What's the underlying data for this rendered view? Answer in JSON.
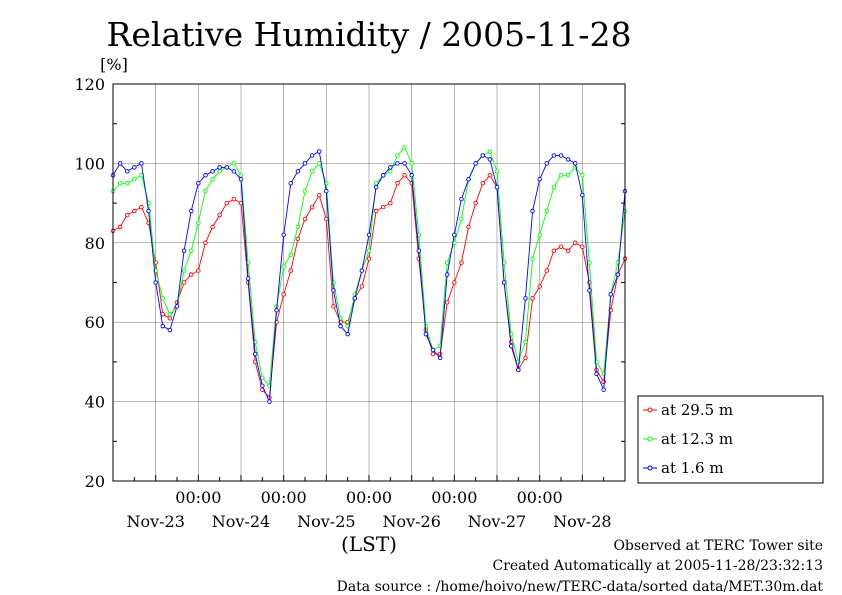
{
  "chart_data": {
    "type": "line",
    "title": "Relative Humidity / 2005-11-28",
    "ylabel": "[%]",
    "xlabel": "(LST)",
    "ylim": [
      20,
      120
    ],
    "yticks": [
      20,
      40,
      60,
      80,
      100,
      120
    ],
    "xlim": [
      0,
      144
    ],
    "x_unit": "hours since Nov-22 12:00",
    "x_tick_labels_top": [
      "00:00",
      "00:00",
      "00:00",
      "00:00",
      "00:00"
    ],
    "x_tick_labels_top_at": [
      24,
      48,
      72,
      96,
      120
    ],
    "x_tick_labels_bottom": [
      "Nov-23",
      "Nov-24",
      "Nov-25",
      "Nov-26",
      "Nov-27",
      "Nov-28"
    ],
    "x_tick_labels_bottom_at": [
      12,
      36,
      60,
      84,
      108,
      132
    ],
    "grid": true,
    "legend_position": "right",
    "series": [
      {
        "name": "at 29.5 m",
        "color": "#ff0000",
        "points": [
          [
            0,
            83
          ],
          [
            2,
            84
          ],
          [
            4,
            87
          ],
          [
            6,
            88
          ],
          [
            8,
            89
          ],
          [
            10,
            85
          ],
          [
            12,
            75
          ],
          [
            14,
            62
          ],
          [
            16,
            61
          ],
          [
            18,
            65
          ],
          [
            20,
            70
          ],
          [
            22,
            72
          ],
          [
            24,
            73
          ],
          [
            26,
            80
          ],
          [
            28,
            84
          ],
          [
            30,
            87
          ],
          [
            32,
            90
          ],
          [
            34,
            91
          ],
          [
            36,
            90
          ],
          [
            38,
            70
          ],
          [
            40,
            50
          ],
          [
            42,
            43
          ],
          [
            44,
            41
          ],
          [
            46,
            60
          ],
          [
            48,
            67
          ],
          [
            50,
            73
          ],
          [
            52,
            81
          ],
          [
            54,
            86
          ],
          [
            56,
            89
          ],
          [
            58,
            92
          ],
          [
            60,
            86
          ],
          [
            62,
            64
          ],
          [
            64,
            60
          ],
          [
            66,
            60
          ],
          [
            68,
            66
          ],
          [
            70,
            69
          ],
          [
            72,
            76
          ],
          [
            74,
            88
          ],
          [
            76,
            89
          ],
          [
            78,
            90
          ],
          [
            80,
            95
          ],
          [
            82,
            97
          ],
          [
            84,
            95
          ],
          [
            86,
            76
          ],
          [
            88,
            58
          ],
          [
            90,
            52
          ],
          [
            92,
            52
          ],
          [
            94,
            65
          ],
          [
            96,
            70
          ],
          [
            98,
            75
          ],
          [
            100,
            84
          ],
          [
            102,
            90
          ],
          [
            104,
            95
          ],
          [
            106,
            97
          ],
          [
            108,
            94
          ],
          [
            110,
            70
          ],
          [
            112,
            55
          ],
          [
            114,
            48
          ],
          [
            116,
            51
          ],
          [
            118,
            66
          ],
          [
            120,
            69
          ],
          [
            122,
            73
          ],
          [
            124,
            78
          ],
          [
            126,
            79
          ],
          [
            128,
            78
          ],
          [
            130,
            80
          ],
          [
            132,
            79
          ],
          [
            134,
            70
          ],
          [
            136,
            48
          ],
          [
            138,
            45
          ],
          [
            140,
            63
          ],
          [
            142,
            72
          ],
          [
            144,
            76
          ]
        ]
      },
      {
        "name": "at 12.3 m",
        "color": "#00ff00",
        "points": [
          [
            0,
            93
          ],
          [
            2,
            95
          ],
          [
            4,
            95
          ],
          [
            6,
            96
          ],
          [
            8,
            97
          ],
          [
            10,
            90
          ],
          [
            12,
            73
          ],
          [
            14,
            66
          ],
          [
            16,
            62
          ],
          [
            18,
            64
          ],
          [
            20,
            73
          ],
          [
            22,
            78
          ],
          [
            24,
            85
          ],
          [
            26,
            93
          ],
          [
            28,
            96
          ],
          [
            30,
            98
          ],
          [
            32,
            99
          ],
          [
            34,
            100
          ],
          [
            36,
            97
          ],
          [
            38,
            75
          ],
          [
            40,
            55
          ],
          [
            42,
            46
          ],
          [
            44,
            44
          ],
          [
            46,
            64
          ],
          [
            48,
            74
          ],
          [
            50,
            77
          ],
          [
            52,
            84
          ],
          [
            54,
            93
          ],
          [
            56,
            98
          ],
          [
            58,
            100
          ],
          [
            60,
            95
          ],
          [
            62,
            70
          ],
          [
            64,
            61
          ],
          [
            66,
            59
          ],
          [
            68,
            67
          ],
          [
            70,
            73
          ],
          [
            72,
            78
          ],
          [
            74,
            95
          ],
          [
            76,
            97
          ],
          [
            78,
            98
          ],
          [
            80,
            102
          ],
          [
            82,
            104
          ],
          [
            84,
            100
          ],
          [
            86,
            82
          ],
          [
            88,
            59
          ],
          [
            90,
            53
          ],
          [
            92,
            54
          ],
          [
            94,
            75
          ],
          [
            96,
            80
          ],
          [
            98,
            86
          ],
          [
            100,
            96
          ],
          [
            102,
            100
          ],
          [
            104,
            102
          ],
          [
            106,
            103
          ],
          [
            108,
            98
          ],
          [
            110,
            75
          ],
          [
            112,
            57
          ],
          [
            114,
            50
          ],
          [
            116,
            55
          ],
          [
            118,
            76
          ],
          [
            120,
            82
          ],
          [
            122,
            88
          ],
          [
            124,
            94
          ],
          [
            126,
            97
          ],
          [
            128,
            97
          ],
          [
            130,
            99
          ],
          [
            132,
            97
          ],
          [
            134,
            75
          ],
          [
            136,
            50
          ],
          [
            138,
            47
          ],
          [
            140,
            67
          ],
          [
            142,
            75
          ],
          [
            144,
            88
          ]
        ]
      },
      {
        "name": "at 1.6 m",
        "color": "#0000ff",
        "points": [
          [
            0,
            97
          ],
          [
            2,
            100
          ],
          [
            4,
            98
          ],
          [
            6,
            99
          ],
          [
            8,
            100
          ],
          [
            10,
            88
          ],
          [
            12,
            70
          ],
          [
            14,
            59
          ],
          [
            16,
            58
          ],
          [
            18,
            64
          ],
          [
            20,
            78
          ],
          [
            22,
            88
          ],
          [
            24,
            95
          ],
          [
            26,
            97
          ],
          [
            28,
            98
          ],
          [
            30,
            99
          ],
          [
            32,
            99
          ],
          [
            34,
            98
          ],
          [
            36,
            96
          ],
          [
            38,
            71
          ],
          [
            40,
            52
          ],
          [
            42,
            44
          ],
          [
            44,
            40
          ],
          [
            46,
            63
          ],
          [
            48,
            82
          ],
          [
            50,
            95
          ],
          [
            52,
            98
          ],
          [
            54,
            100
          ],
          [
            56,
            102
          ],
          [
            58,
            103
          ],
          [
            60,
            93
          ],
          [
            62,
            68
          ],
          [
            64,
            59
          ],
          [
            66,
            57
          ],
          [
            68,
            66
          ],
          [
            70,
            73
          ],
          [
            72,
            82
          ],
          [
            74,
            94
          ],
          [
            76,
            97
          ],
          [
            78,
            99
          ],
          [
            80,
            100
          ],
          [
            82,
            100
          ],
          [
            84,
            97
          ],
          [
            86,
            78
          ],
          [
            88,
            57
          ],
          [
            90,
            53
          ],
          [
            92,
            51
          ],
          [
            94,
            72
          ],
          [
            96,
            82
          ],
          [
            98,
            91
          ],
          [
            100,
            96
          ],
          [
            102,
            100
          ],
          [
            104,
            102
          ],
          [
            106,
            101
          ],
          [
            108,
            94
          ],
          [
            110,
            70
          ],
          [
            112,
            54
          ],
          [
            114,
            48
          ],
          [
            116,
            66
          ],
          [
            118,
            88
          ],
          [
            120,
            96
          ],
          [
            122,
            100
          ],
          [
            124,
            102
          ],
          [
            126,
            102
          ],
          [
            128,
            101
          ],
          [
            130,
            100
          ],
          [
            132,
            92
          ],
          [
            134,
            68
          ],
          [
            136,
            47
          ],
          [
            138,
            43
          ],
          [
            140,
            67
          ],
          [
            142,
            72
          ],
          [
            144,
            93
          ]
        ]
      }
    ]
  },
  "footer": {
    "line1": "Observed at TERC Tower site",
    "line2": "Created Automatically at 2005-11-28/23:32:13",
    "line3": "Data source : /home/hoivo/new/TERC-data/sorted  data/MET.30m.dat"
  }
}
